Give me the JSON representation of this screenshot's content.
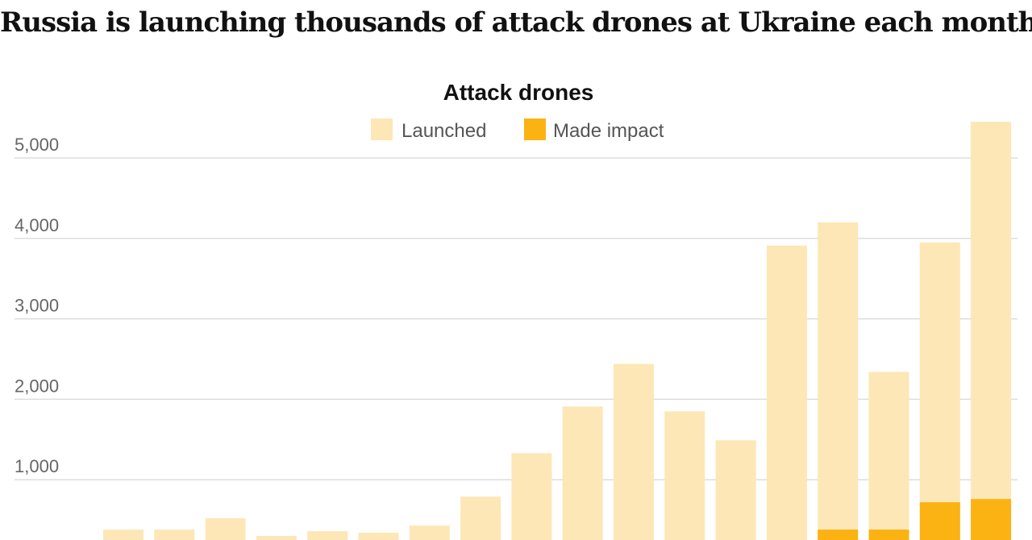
{
  "headline": "Russia is launching thousands of attack drones at Ukraine each month",
  "colors": {
    "launched": "#fde7b6",
    "impact": "#fbb313",
    "grid": "#dddddd"
  },
  "chart_data": {
    "type": "bar",
    "subtitle": "Attack drones",
    "legend": {
      "position": "top-center",
      "entries": [
        "Launched",
        "Made impact"
      ]
    },
    "yticks": [
      {
        "value": 1000,
        "label": "1,000"
      },
      {
        "value": 2000,
        "label": "2,000"
      },
      {
        "value": 3000,
        "label": "3,000"
      },
      {
        "value": 4000,
        "label": "4,000"
      },
      {
        "value": 5000,
        "label": "5,000"
      }
    ],
    "grid": true,
    "ylim": [
      0,
      5750
    ],
    "series": [
      {
        "name": "Launched",
        "values": [
          380,
          380,
          520,
          300,
          360,
          340,
          430,
          790,
          1330,
          1910,
          2440,
          1850,
          1490,
          3910,
          4200,
          2340,
          3950,
          5450
        ]
      },
      {
        "name": "Made impact",
        "values": [
          0,
          0,
          0,
          0,
          0,
          0,
          0,
          0,
          0,
          0,
          0,
          0,
          0,
          0,
          380,
          380,
          720,
          760
        ]
      }
    ]
  }
}
